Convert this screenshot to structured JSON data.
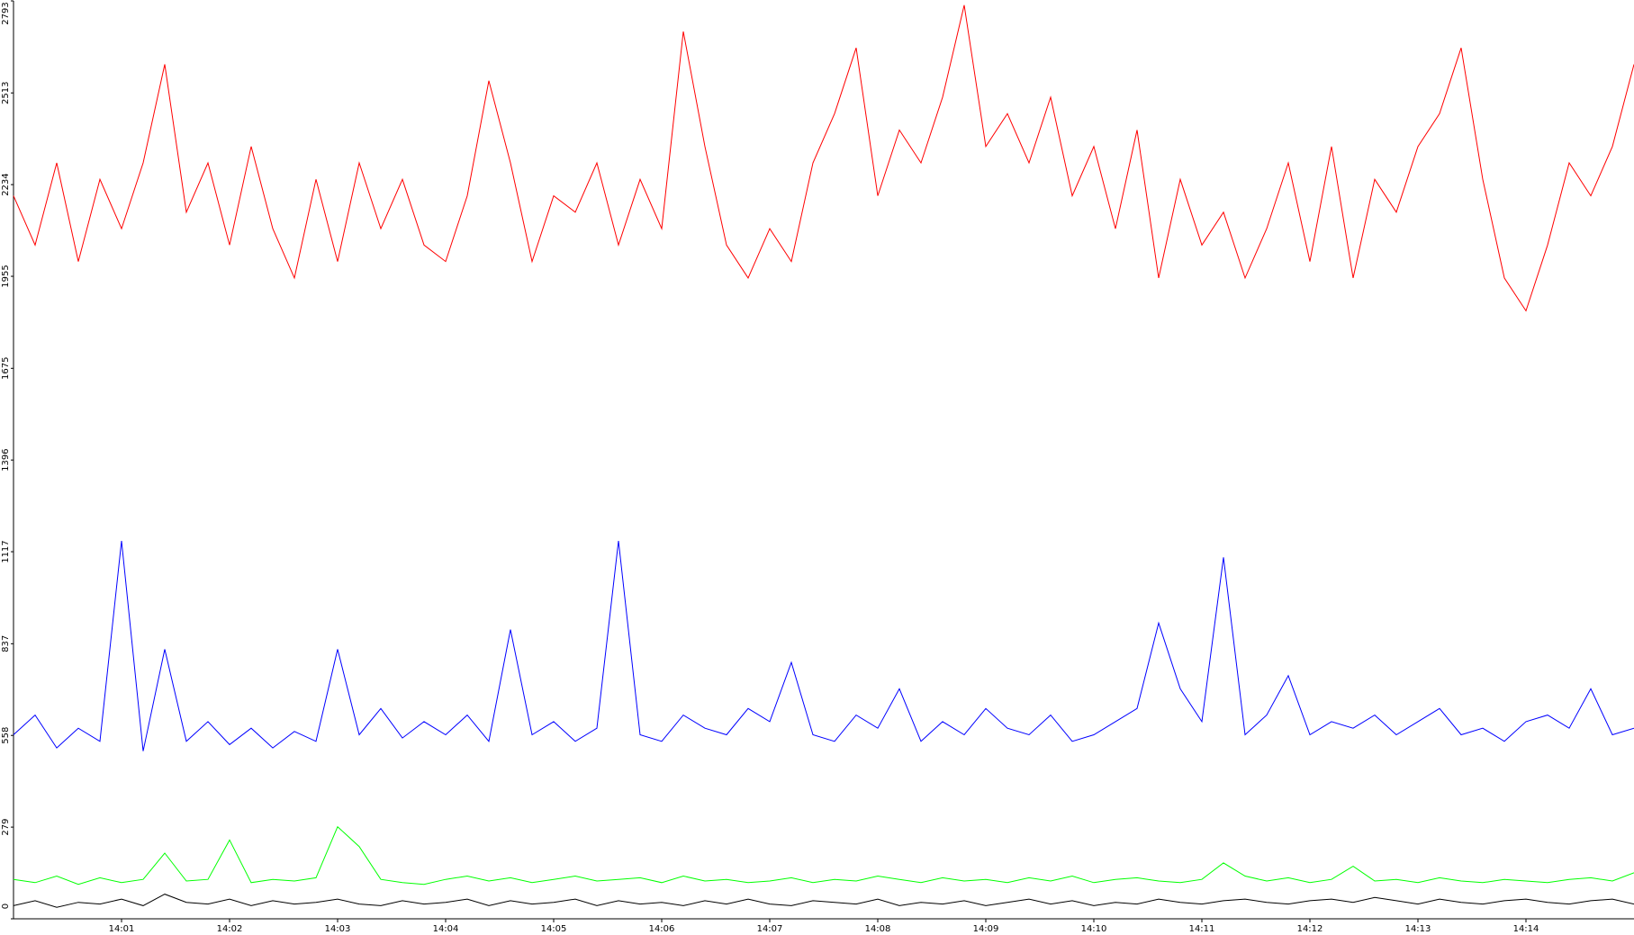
{
  "chart_data": {
    "type": "line",
    "xlim": [
      0,
      15
    ],
    "xticks": [
      {
        "value": 1,
        "label": "14:01"
      },
      {
        "value": 2,
        "label": "14:02"
      },
      {
        "value": 3,
        "label": "14:03"
      },
      {
        "value": 4,
        "label": "14:04"
      },
      {
        "value": 5,
        "label": "14:05"
      },
      {
        "value": 6,
        "label": "14:06"
      },
      {
        "value": 7,
        "label": "14:07"
      },
      {
        "value": 8,
        "label": "14:08"
      },
      {
        "value": 9,
        "label": "14:09"
      },
      {
        "value": 10,
        "label": "14:10"
      },
      {
        "value": 11,
        "label": "14:11"
      },
      {
        "value": 12,
        "label": "14:12"
      },
      {
        "value": 13,
        "label": "14:13"
      },
      {
        "value": 14,
        "label": "14:14"
      }
    ],
    "ylim": [
      0,
      2793
    ],
    "yticks": [
      0,
      279,
      558,
      837,
      1117,
      1396,
      1675,
      1955,
      2234,
      2513,
      2793
    ],
    "x": [
      0,
      0.2,
      0.4,
      0.6,
      0.8,
      1,
      1.2,
      1.4,
      1.6,
      1.8,
      2,
      2.2,
      2.4,
      2.6,
      2.8,
      3,
      3.2,
      3.4,
      3.6,
      3.8,
      4,
      4.2,
      4.4,
      4.6,
      4.8,
      5,
      5.2,
      5.4,
      5.6,
      5.8,
      6,
      6.2,
      6.4,
      6.6,
      6.8,
      7,
      7.2,
      7.4,
      7.6,
      7.8,
      8,
      8.2,
      8.4,
      8.6,
      8.8,
      9,
      9.2,
      9.4,
      9.6,
      9.8,
      10,
      10.2,
      10.4,
      10.6,
      10.8,
      11,
      11.2,
      11.4,
      11.6,
      11.8,
      12,
      12.2,
      12.4,
      12.6,
      12.8,
      13,
      13.2,
      13.4,
      13.6,
      13.8,
      14,
      14.2,
      14.4,
      14.6,
      14.8,
      15
    ],
    "series": [
      {
        "color": "#ff0000",
        "values": [
          2200,
          2050,
          2300,
          2000,
          2250,
          2100,
          2300,
          2600,
          2150,
          2300,
          2050,
          2350,
          2100,
          1950,
          2250,
          2000,
          2300,
          2100,
          2250,
          2050,
          2000,
          2200,
          2550,
          2300,
          2000,
          2200,
          2150,
          2300,
          2050,
          2250,
          2100,
          2700,
          2350,
          2050,
          1950,
          2100,
          2000,
          2300,
          2450,
          2650,
          2200,
          2400,
          2300,
          2500,
          2780,
          2350,
          2450,
          2300,
          2500,
          2200,
          2350,
          2100,
          2400,
          1950,
          2250,
          2050,
          2150,
          1950,
          2100,
          2300,
          2000,
          2350,
          1950,
          2250,
          2150,
          2350,
          2450,
          2650,
          2250,
          1950,
          1850,
          2050,
          2300,
          2200,
          2350,
          2600
        ]
      },
      {
        "color": "#0000ff",
        "values": [
          560,
          620,
          520,
          580,
          540,
          1150,
          510,
          820,
          540,
          600,
          530,
          580,
          520,
          570,
          540,
          820,
          560,
          640,
          550,
          600,
          560,
          620,
          540,
          880,
          560,
          600,
          540,
          580,
          1150,
          560,
          540,
          620,
          580,
          560,
          640,
          600,
          780,
          560,
          540,
          620,
          580,
          700,
          540,
          600,
          560,
          640,
          580,
          560,
          620,
          540,
          560,
          600,
          640,
          900,
          700,
          600,
          1100,
          560,
          620,
          740,
          560,
          600,
          580,
          620,
          560,
          600,
          640,
          560,
          580,
          540,
          600,
          620,
          580,
          700,
          560,
          580
        ]
      },
      {
        "color": "#00ff00",
        "values": [
          120,
          110,
          130,
          105,
          125,
          110,
          120,
          200,
          115,
          120,
          240,
          110,
          120,
          115,
          125,
          280,
          220,
          120,
          110,
          105,
          120,
          130,
          115,
          125,
          110,
          120,
          130,
          115,
          120,
          125,
          110,
          130,
          115,
          120,
          110,
          115,
          125,
          110,
          120,
          115,
          130,
          120,
          110,
          125,
          115,
          120,
          110,
          125,
          115,
          130,
          110,
          120,
          125,
          115,
          110,
          120,
          170,
          130,
          115,
          125,
          110,
          120,
          160,
          115,
          120,
          110,
          125,
          115,
          110,
          120,
          115,
          110,
          120,
          125,
          115,
          140
        ]
      },
      {
        "color": "#000000",
        "values": [
          40,
          55,
          35,
          50,
          45,
          60,
          40,
          75,
          50,
          45,
          60,
          40,
          55,
          45,
          50,
          60,
          45,
          40,
          55,
          45,
          50,
          60,
          40,
          55,
          45,
          50,
          60,
          40,
          55,
          45,
          50,
          40,
          55,
          45,
          60,
          45,
          40,
          55,
          50,
          45,
          60,
          40,
          50,
          45,
          55,
          40,
          50,
          60,
          45,
          55,
          40,
          50,
          45,
          60,
          50,
          45,
          55,
          60,
          50,
          45,
          55,
          60,
          50,
          65,
          55,
          45,
          60,
          50,
          45,
          55,
          60,
          50,
          45,
          55,
          60,
          45
        ]
      }
    ]
  }
}
